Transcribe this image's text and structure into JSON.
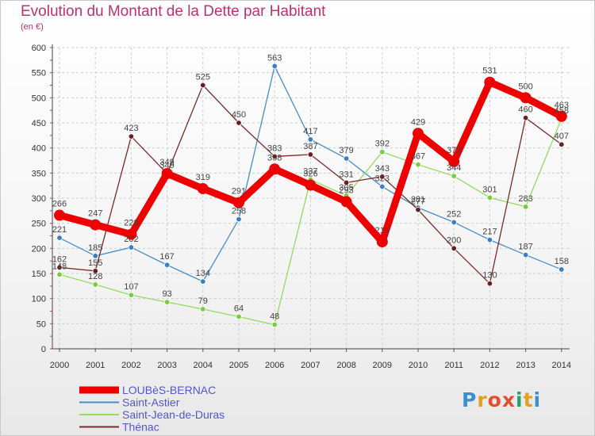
{
  "title": "Evolution du Montant de la Dette par Habitant",
  "unit": "(en €)",
  "brand": "Proxiti",
  "chart_data": {
    "type": "line",
    "title": "Evolution du Montant de la Dette par Habitant",
    "ylabel": "(en €)",
    "ylim": [
      0,
      600
    ],
    "yticks": [
      0,
      50,
      100,
      150,
      200,
      250,
      300,
      350,
      400,
      450,
      500,
      550,
      600
    ],
    "grid": true,
    "legend": "bottom-left",
    "x": [
      "2000",
      "2001",
      "2002",
      "2003",
      "2004",
      "2005",
      "2006",
      "2007",
      "2008",
      "2009",
      "2010",
      "2011",
      "2012",
      "2013",
      "2014"
    ],
    "series": [
      {
        "name": "Saint-Astier",
        "color": "#4a8cc8",
        "marker": "#3a7fc0",
        "values": [
          221,
          185,
          202,
          167,
          134,
          258,
          563,
          417,
          379,
          323,
          281,
          252,
          217,
          187,
          158
        ]
      },
      {
        "name": "Saint-Jean-de-Duras",
        "color": "#90dc60",
        "marker": "#78cc40",
        "values": [
          148,
          128,
          107,
          93,
          79,
          64,
          48,
          337,
          305,
          392,
          367,
          344,
          301,
          283,
          458
        ]
      },
      {
        "name": "Thénac",
        "color": "#7a2a2a",
        "marker": "#6a1e1e",
        "values": [
          162,
          155,
          423,
          349,
          525,
          450,
          383,
          387,
          331,
          343,
          277,
          200,
          130,
          460,
          407
        ]
      },
      {
        "name": "LOUBèS-BERNAC",
        "color": "#ee0000",
        "marker": "#ee0000",
        "values": [
          266,
          247,
          228,
          349,
          319,
          291,
          358,
          326,
          293,
          213,
          429,
          373,
          531,
          500,
          463
        ]
      }
    ]
  }
}
